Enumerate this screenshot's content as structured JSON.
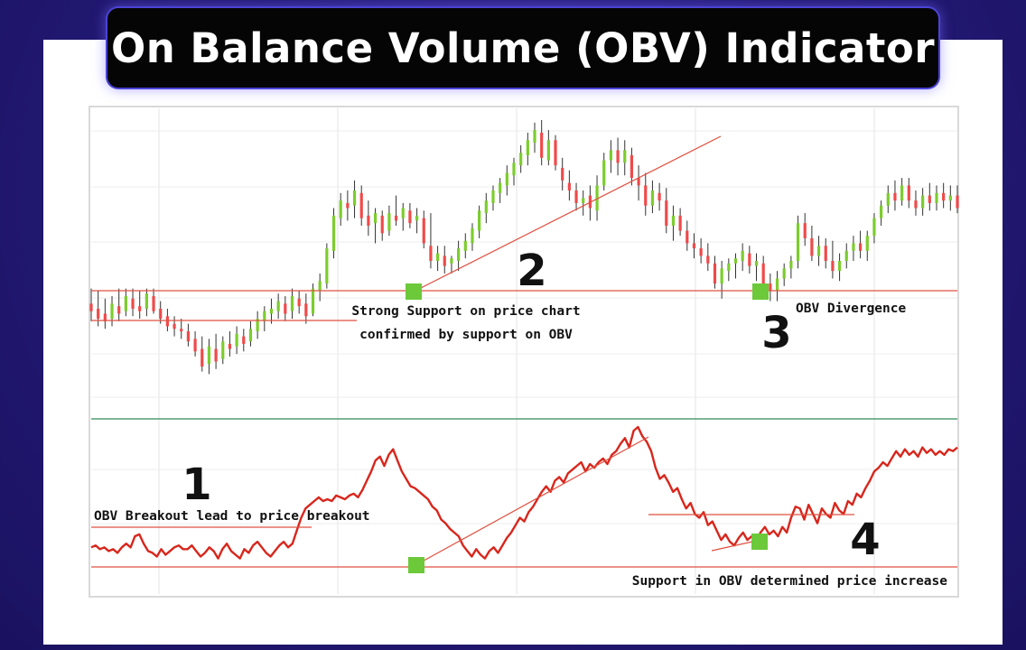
{
  "header": {
    "title": "On Balance Volume (OBV) Indicator"
  },
  "colors": {
    "background": "#241a78",
    "title_bg": "#050505",
    "up_bar": "#7ccd2d",
    "down_bar": "#f04a4a",
    "obv_line": "#d8261c",
    "support_line": "#e05040",
    "marker": "#6cc93a",
    "divider": "#2e8b57"
  },
  "annotations": [
    {
      "id": "note-1",
      "number": "1",
      "text": "OBV Breakout lead to price breakout"
    },
    {
      "id": "note-2",
      "number": "2",
      "text": "Strong Support on price chart",
      "text2": "confirmed by support on OBV"
    },
    {
      "id": "note-3",
      "number": "3",
      "text": "OBV Divergence"
    },
    {
      "id": "note-4",
      "number": "4",
      "text": "Support in OBV determined price increase"
    }
  ],
  "chart_data": [
    {
      "type": "ohlc",
      "panel": "price",
      "title": "",
      "xlabel": "",
      "ylabel": "",
      "grid": true,
      "ylim": [
        0,
        100
      ],
      "bars": [
        {
          "o": 39,
          "h": 45,
          "l": 32,
          "c": 36
        },
        {
          "o": 37,
          "h": 44,
          "l": 30,
          "c": 33
        },
        {
          "o": 35,
          "h": 41,
          "l": 29,
          "c": 32
        },
        {
          "o": 33,
          "h": 42,
          "l": 30,
          "c": 39
        },
        {
          "o": 38,
          "h": 45,
          "l": 32,
          "c": 35
        },
        {
          "o": 36,
          "h": 45,
          "l": 34,
          "c": 42
        },
        {
          "o": 41,
          "h": 45,
          "l": 34,
          "c": 37
        },
        {
          "o": 38,
          "h": 44,
          "l": 33,
          "c": 36
        },
        {
          "o": 37,
          "h": 45,
          "l": 34,
          "c": 43
        },
        {
          "o": 42,
          "h": 45,
          "l": 35,
          "c": 36
        },
        {
          "o": 37,
          "h": 40,
          "l": 31,
          "c": 33
        },
        {
          "o": 34,
          "h": 37,
          "l": 28,
          "c": 30
        },
        {
          "o": 31,
          "h": 34,
          "l": 26,
          "c": 29
        },
        {
          "o": 29,
          "h": 33,
          "l": 25,
          "c": 28
        },
        {
          "o": 28,
          "h": 31,
          "l": 22,
          "c": 24
        },
        {
          "o": 25,
          "h": 28,
          "l": 18,
          "c": 20
        },
        {
          "o": 21,
          "h": 26,
          "l": 12,
          "c": 14
        },
        {
          "o": 15,
          "h": 25,
          "l": 11,
          "c": 22
        },
        {
          "o": 21,
          "h": 27,
          "l": 13,
          "c": 16
        },
        {
          "o": 17,
          "h": 26,
          "l": 15,
          "c": 24
        },
        {
          "o": 23,
          "h": 28,
          "l": 18,
          "c": 21
        },
        {
          "o": 22,
          "h": 30,
          "l": 19,
          "c": 27
        },
        {
          "o": 26,
          "h": 29,
          "l": 20,
          "c": 23
        },
        {
          "o": 24,
          "h": 32,
          "l": 22,
          "c": 29
        },
        {
          "o": 28,
          "h": 36,
          "l": 25,
          "c": 33
        },
        {
          "o": 32,
          "h": 38,
          "l": 28,
          "c": 36
        },
        {
          "o": 35,
          "h": 41,
          "l": 31,
          "c": 37
        },
        {
          "o": 36,
          "h": 43,
          "l": 33,
          "c": 40
        },
        {
          "o": 39,
          "h": 42,
          "l": 32,
          "c": 35
        },
        {
          "o": 36,
          "h": 45,
          "l": 33,
          "c": 42
        },
        {
          "o": 41,
          "h": 44,
          "l": 35,
          "c": 38
        },
        {
          "o": 39,
          "h": 43,
          "l": 31,
          "c": 34
        },
        {
          "o": 35,
          "h": 47,
          "l": 34,
          "c": 45
        },
        {
          "o": 44,
          "h": 51,
          "l": 40,
          "c": 48
        },
        {
          "o": 47,
          "h": 63,
          "l": 45,
          "c": 61
        },
        {
          "o": 60,
          "h": 77,
          "l": 57,
          "c": 74
        },
        {
          "o": 73,
          "h": 83,
          "l": 70,
          "c": 80
        },
        {
          "o": 79,
          "h": 84,
          "l": 72,
          "c": 77
        },
        {
          "o": 78,
          "h": 88,
          "l": 73,
          "c": 84
        },
        {
          "o": 83,
          "h": 86,
          "l": 70,
          "c": 73
        },
        {
          "o": 74,
          "h": 80,
          "l": 66,
          "c": 70
        },
        {
          "o": 71,
          "h": 77,
          "l": 63,
          "c": 75
        },
        {
          "o": 74,
          "h": 76,
          "l": 64,
          "c": 67
        },
        {
          "o": 68,
          "h": 78,
          "l": 66,
          "c": 75
        },
        {
          "o": 74,
          "h": 82,
          "l": 70,
          "c": 72
        },
        {
          "o": 73,
          "h": 79,
          "l": 68,
          "c": 77
        },
        {
          "o": 76,
          "h": 79,
          "l": 69,
          "c": 71
        },
        {
          "o": 72,
          "h": 77,
          "l": 67,
          "c": 74
        },
        {
          "o": 73,
          "h": 76,
          "l": 61,
          "c": 63
        },
        {
          "o": 62,
          "h": 75,
          "l": 53,
          "c": 56
        },
        {
          "o": 56,
          "h": 62,
          "l": 52,
          "c": 59
        },
        {
          "o": 58,
          "h": 62,
          "l": 51,
          "c": 54
        },
        {
          "o": 55,
          "h": 58,
          "l": 51,
          "c": 57
        },
        {
          "o": 56,
          "h": 64,
          "l": 52,
          "c": 61
        },
        {
          "o": 60,
          "h": 67,
          "l": 57,
          "c": 64
        },
        {
          "o": 63,
          "h": 71,
          "l": 60,
          "c": 69
        },
        {
          "o": 68,
          "h": 78,
          "l": 65,
          "c": 76
        },
        {
          "o": 75,
          "h": 83,
          "l": 71,
          "c": 80
        },
        {
          "o": 79,
          "h": 86,
          "l": 76,
          "c": 84
        },
        {
          "o": 83,
          "h": 89,
          "l": 79,
          "c": 87
        },
        {
          "o": 86,
          "h": 94,
          "l": 82,
          "c": 91
        },
        {
          "o": 90,
          "h": 97,
          "l": 86,
          "c": 95
        },
        {
          "o": 94,
          "h": 102,
          "l": 91,
          "c": 99
        },
        {
          "o": 98,
          "h": 107,
          "l": 94,
          "c": 104
        },
        {
          "o": 103,
          "h": 111,
          "l": 99,
          "c": 108
        },
        {
          "o": 107,
          "h": 112,
          "l": 94,
          "c": 97
        },
        {
          "o": 96,
          "h": 108,
          "l": 94,
          "c": 104
        },
        {
          "o": 104,
          "h": 106,
          "l": 92,
          "c": 94
        },
        {
          "o": 93,
          "h": 97,
          "l": 84,
          "c": 88
        },
        {
          "o": 87,
          "h": 92,
          "l": 80,
          "c": 84
        },
        {
          "o": 84,
          "h": 87,
          "l": 76,
          "c": 79
        },
        {
          "o": 79,
          "h": 84,
          "l": 74,
          "c": 81
        },
        {
          "o": 82,
          "h": 86,
          "l": 72,
          "c": 77
        },
        {
          "o": 76,
          "h": 90,
          "l": 72,
          "c": 86
        },
        {
          "o": 86,
          "h": 99,
          "l": 84,
          "c": 96
        },
        {
          "o": 96,
          "h": 104,
          "l": 91,
          "c": 100
        },
        {
          "o": 100,
          "h": 105,
          "l": 90,
          "c": 95
        },
        {
          "o": 95,
          "h": 104,
          "l": 90,
          "c": 100
        },
        {
          "o": 98,
          "h": 101,
          "l": 86,
          "c": 89
        },
        {
          "o": 89,
          "h": 94,
          "l": 80,
          "c": 86
        },
        {
          "o": 86,
          "h": 91,
          "l": 74,
          "c": 78
        },
        {
          "o": 78,
          "h": 88,
          "l": 75,
          "c": 84
        },
        {
          "o": 83,
          "h": 87,
          "l": 76,
          "c": 80
        },
        {
          "o": 80,
          "h": 85,
          "l": 67,
          "c": 70
        },
        {
          "o": 70,
          "h": 78,
          "l": 64,
          "c": 74
        },
        {
          "o": 74,
          "h": 77,
          "l": 66,
          "c": 68
        },
        {
          "o": 68,
          "h": 72,
          "l": 60,
          "c": 63
        },
        {
          "o": 63,
          "h": 67,
          "l": 57,
          "c": 61
        },
        {
          "o": 61,
          "h": 65,
          "l": 55,
          "c": 58
        },
        {
          "o": 58,
          "h": 63,
          "l": 52,
          "c": 55
        },
        {
          "o": 55,
          "h": 58,
          "l": 45,
          "c": 47
        },
        {
          "o": 47,
          "h": 56,
          "l": 41,
          "c": 53
        },
        {
          "o": 52,
          "h": 57,
          "l": 48,
          "c": 55
        },
        {
          "o": 55,
          "h": 59,
          "l": 49,
          "c": 57
        },
        {
          "o": 56,
          "h": 63,
          "l": 52,
          "c": 60
        },
        {
          "o": 59,
          "h": 62,
          "l": 51,
          "c": 54
        },
        {
          "o": 54,
          "h": 59,
          "l": 48,
          "c": 56
        },
        {
          "o": 55,
          "h": 58,
          "l": 44,
          "c": 47
        },
        {
          "o": 47,
          "h": 51,
          "l": 40,
          "c": 44
        },
        {
          "o": 44,
          "h": 52,
          "l": 40,
          "c": 49
        },
        {
          "o": 49,
          "h": 55,
          "l": 46,
          "c": 53
        },
        {
          "o": 53,
          "h": 58,
          "l": 49,
          "c": 56
        },
        {
          "o": 56,
          "h": 74,
          "l": 53,
          "c": 71
        },
        {
          "o": 71,
          "h": 75,
          "l": 62,
          "c": 65
        },
        {
          "o": 65,
          "h": 70,
          "l": 56,
          "c": 58
        },
        {
          "o": 58,
          "h": 66,
          "l": 54,
          "c": 62
        },
        {
          "o": 62,
          "h": 65,
          "l": 53,
          "c": 56
        },
        {
          "o": 56,
          "h": 64,
          "l": 49,
          "c": 52
        },
        {
          "o": 52,
          "h": 59,
          "l": 48,
          "c": 56
        },
        {
          "o": 56,
          "h": 63,
          "l": 53,
          "c": 60
        },
        {
          "o": 60,
          "h": 66,
          "l": 56,
          "c": 63
        },
        {
          "o": 63,
          "h": 68,
          "l": 57,
          "c": 60
        },
        {
          "o": 60,
          "h": 68,
          "l": 56,
          "c": 66
        },
        {
          "o": 66,
          "h": 75,
          "l": 63,
          "c": 73
        },
        {
          "o": 73,
          "h": 80,
          "l": 70,
          "c": 78
        },
        {
          "o": 78,
          "h": 86,
          "l": 75,
          "c": 83
        },
        {
          "o": 83,
          "h": 88,
          "l": 76,
          "c": 80
        },
        {
          "o": 80,
          "h": 89,
          "l": 78,
          "c": 86
        },
        {
          "o": 86,
          "h": 89,
          "l": 77,
          "c": 80
        },
        {
          "o": 80,
          "h": 84,
          "l": 74,
          "c": 77
        },
        {
          "o": 77,
          "h": 85,
          "l": 74,
          "c": 82
        },
        {
          "o": 82,
          "h": 87,
          "l": 76,
          "c": 79
        },
        {
          "o": 79,
          "h": 86,
          "l": 76,
          "c": 83
        },
        {
          "o": 83,
          "h": 87,
          "l": 77,
          "c": 80
        },
        {
          "o": 80,
          "h": 86,
          "l": 76,
          "c": 82
        },
        {
          "o": 82,
          "h": 86,
          "l": 75,
          "c": 77
        }
      ]
    },
    {
      "type": "line",
      "panel": "obv",
      "title": "",
      "xlabel": "",
      "ylabel": "",
      "grid": true,
      "ylim": [
        0,
        100
      ],
      "series": [
        {
          "values": [
            14,
            15,
            13,
            14,
            12,
            13,
            11,
            14,
            16,
            14,
            20,
            21,
            16,
            12,
            11,
            9,
            13,
            10,
            12,
            14,
            15,
            13,
            13,
            15,
            12,
            9,
            11,
            14,
            12,
            8,
            13,
            16,
            12,
            10,
            8,
            13,
            11,
            15,
            17,
            14,
            11,
            9,
            12,
            15,
            17,
            14,
            16,
            23,
            30,
            35,
            37,
            39,
            41,
            39,
            40,
            39,
            42,
            41,
            40,
            42,
            43,
            41,
            45,
            50,
            55,
            61,
            63,
            58,
            64,
            67,
            61,
            55,
            51,
            47,
            46,
            44,
            42,
            40,
            36,
            34,
            29,
            27,
            24,
            22,
            20,
            15,
            12,
            9,
            13,
            10,
            8,
            12,
            14,
            11,
            15,
            19,
            22,
            26,
            30,
            28,
            33,
            36,
            40,
            44,
            47,
            44,
            50,
            52,
            49,
            54,
            56,
            58,
            60,
            55,
            59,
            57,
            60,
            62,
            59,
            64,
            66,
            70,
            73,
            68,
            77,
            79,
            74,
            71,
            66,
            57,
            51,
            53,
            49,
            44,
            46,
            40,
            35,
            38,
            32,
            30,
            33,
            26,
            28,
            23,
            18,
            21,
            17,
            15,
            19,
            22,
            18,
            20,
            17,
            22,
            25,
            21,
            23,
            20,
            25,
            22,
            30,
            36,
            35,
            29,
            37,
            32,
            27,
            35,
            32,
            30,
            38,
            34,
            32,
            39,
            37,
            43,
            41,
            46,
            50,
            55,
            57,
            60,
            58,
            62,
            66,
            63,
            67,
            64,
            66,
            63,
            68,
            65,
            67,
            64,
            66,
            64,
            67,
            66,
            68
          ]
        }
      ]
    }
  ]
}
